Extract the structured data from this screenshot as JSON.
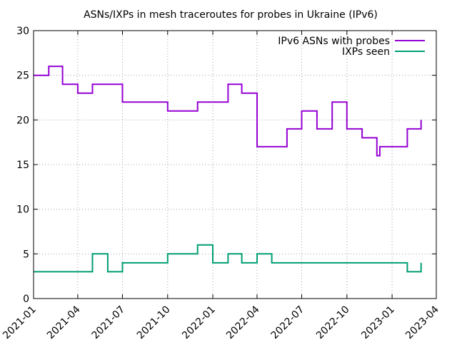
{
  "chart_data": {
    "type": "line",
    "title": "ASNs/IXPs in mesh traceroutes for probes in Ukraine (IPv6)",
    "xlabel": "",
    "ylabel": "",
    "ylim": [
      0,
      30
    ],
    "xlim": [
      "2021-01",
      "2023-04"
    ],
    "yticks": [
      0,
      5,
      10,
      15,
      20,
      25,
      30
    ],
    "xticks": [
      "2021-01",
      "2021-04",
      "2021-07",
      "2021-10",
      "2022-01",
      "2022-04",
      "2022-07",
      "2022-10",
      "2023-01",
      "2023-04"
    ],
    "grid": true,
    "legend_position": "top-right",
    "step": true,
    "series": [
      {
        "name": "IPv6 ASNs with probes",
        "color": "#9400d3",
        "x": [
          "2021-01",
          "2021-02",
          "2021-03",
          "2021-04",
          "2021-05",
          "2021-06",
          "2021-07",
          "2021-08",
          "2021-09",
          "2021-10",
          "2021-11",
          "2021-12",
          "2022-01",
          "2022-02",
          "2022-03",
          "2022-04",
          "2022-05",
          "2022-06",
          "2022-07",
          "2022-08",
          "2022-09",
          "2022-10",
          "2022-11",
          "2022-12",
          "2022-12-07",
          "2023-01",
          "2023-02",
          "2023-03"
        ],
        "values": [
          25,
          26,
          24,
          23,
          24,
          24,
          22,
          22,
          22,
          21,
          21,
          22,
          22,
          24,
          23,
          17,
          17,
          19,
          21,
          19,
          22,
          19,
          18,
          16,
          17,
          17,
          19,
          20
        ]
      },
      {
        "name": "IXPs seen",
        "color": "#009e73",
        "x": [
          "2021-01",
          "2021-02",
          "2021-03",
          "2021-04",
          "2021-05",
          "2021-06",
          "2021-07",
          "2021-08",
          "2021-09",
          "2021-10",
          "2021-11",
          "2021-12",
          "2022-01",
          "2022-02",
          "2022-03",
          "2022-04",
          "2022-05",
          "2022-06",
          "2022-07",
          "2022-08",
          "2022-09",
          "2022-10",
          "2022-11",
          "2022-12",
          "2023-01",
          "2023-02",
          "2023-03"
        ],
        "values": [
          3,
          3,
          3,
          3,
          5,
          3,
          4,
          4,
          4,
          5,
          5,
          6,
          4,
          5,
          4,
          5,
          4,
          4,
          4,
          4,
          4,
          4,
          4,
          4,
          4,
          3,
          4
        ]
      }
    ]
  }
}
